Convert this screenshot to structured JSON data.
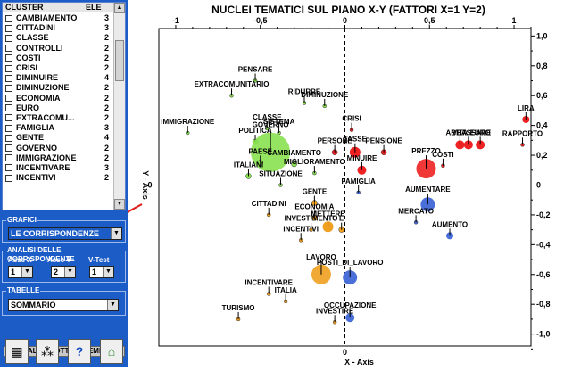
{
  "cluster_table": {
    "header_cluster": "CLUSTER",
    "header_ele": "ELE",
    "rows": [
      {
        "name": "CAMBIAMENTO",
        "ele": "3"
      },
      {
        "name": "CITTADINI",
        "ele": "3"
      },
      {
        "name": "CLASSE",
        "ele": "2"
      },
      {
        "name": "CONTROLLI",
        "ele": "2"
      },
      {
        "name": "COSTI",
        "ele": "2"
      },
      {
        "name": "CRISI",
        "ele": "2"
      },
      {
        "name": "DIMINUIRE",
        "ele": "4"
      },
      {
        "name": "DIMINUZIONE",
        "ele": "2"
      },
      {
        "name": "ECONOMIA",
        "ele": "2"
      },
      {
        "name": "EURO",
        "ele": "2"
      },
      {
        "name": "EXTRACOMU...",
        "ele": "2"
      },
      {
        "name": "FAMIGLIA",
        "ele": "3"
      },
      {
        "name": "GENTE",
        "ele": "4"
      },
      {
        "name": "GOVERNO",
        "ele": "2"
      },
      {
        "name": "IMMIGRAZIONE",
        "ele": "2"
      },
      {
        "name": "INCENTIVARE",
        "ele": "3"
      },
      {
        "name": "INCENTIVI",
        "ele": "2"
      }
    ]
  },
  "grafici": {
    "title": "GRAFICI",
    "selected": "LE CORRISPONDENZE"
  },
  "analisi": {
    "title": "ANALISI DELLE CORRISPONDENZE",
    "asse_x_label": "Asse X",
    "asse_y_label": "Asse Y",
    "vtest_label": "V-Test",
    "asse_x": "1",
    "asse_y": "2",
    "vtest": "1"
  },
  "tabelle": {
    "title": "TABELLE",
    "selected": "SOMMARIO"
  },
  "altri_button": "ALTRI SOTTOINSIEMI",
  "icons": [
    "calculator-icon",
    "network-icon",
    "help-icon",
    "home-exit-icon"
  ],
  "chart_data": {
    "type": "scatter",
    "title": "NUCLEI TEMATICI SUL PIANO X-Y  (FATTORI X=1 Y=2)",
    "xlabel": "X - Axis",
    "ylabel": "Y - Axis",
    "xlim": [
      -1.1,
      1.1
    ],
    "ylim": [
      -1.08,
      1.05
    ],
    "x_ticks": [
      -1,
      -0.5,
      0,
      0.5,
      1
    ],
    "x_tick_labels": [
      "-1",
      "-0,5",
      "0",
      "0,5",
      "1"
    ],
    "y_ticks": [
      1.0,
      0.8,
      0.6,
      0.4,
      0.2,
      0,
      -0.2,
      -0.4,
      -0.6,
      -0.8,
      -1.0
    ],
    "y_tick_labels": [
      "1,0",
      "0,8",
      "0,6",
      "0,4",
      "0,2",
      "0",
      "-0,2",
      "-0,4",
      "-0,6",
      "-0,8",
      "-1,0"
    ],
    "left_zero_label": "0",
    "colors": {
      "green": "#88e050",
      "red": "#ee2222",
      "blue": "#4a6fd8",
      "orange": "#f0a020"
    },
    "points": [
      {
        "label": "PENSARE",
        "x": -0.53,
        "y": 0.7,
        "color": "green",
        "r": 2
      },
      {
        "label": "EXTRACOMUNITARIO",
        "x": -0.67,
        "y": 0.6,
        "color": "green",
        "r": 2
      },
      {
        "label": "RIDURRE",
        "x": -0.24,
        "y": 0.55,
        "color": "green",
        "r": 2
      },
      {
        "label": "DIMINUZIONE",
        "x": -0.12,
        "y": 0.53,
        "color": "green",
        "r": 2
      },
      {
        "label": "IMMIGRAZIONE",
        "x": -0.93,
        "y": 0.35,
        "color": "green",
        "r": 2
      },
      {
        "label": "CLASSE",
        "x": -0.46,
        "y": 0.38,
        "color": "green",
        "r": 2
      },
      {
        "label": "SISTEMA",
        "x": -0.39,
        "y": 0.35,
        "color": "green",
        "r": 2
      },
      {
        "label": "POLITICA",
        "x": -0.53,
        "y": 0.29,
        "color": "green",
        "r": 3
      },
      {
        "label": "GOVERNO",
        "x": -0.44,
        "y": 0.22,
        "color": "green",
        "r": 22
      },
      {
        "label": "PAESE",
        "x": -0.5,
        "y": 0.15,
        "color": "green",
        "r": 3
      },
      {
        "label": "CAMBIAMENTO",
        "x": -0.3,
        "y": 0.14,
        "color": "green",
        "r": 3
      },
      {
        "label": "MIGLIORAMENTO",
        "x": -0.18,
        "y": 0.08,
        "color": "green",
        "r": 2
      },
      {
        "label": "ITALIANI",
        "x": -0.57,
        "y": 0.06,
        "color": "green",
        "r": 3
      },
      {
        "label": "SITUAZIONE",
        "x": -0.38,
        "y": 0.0,
        "color": "green",
        "r": 2
      },
      {
        "label": "CRISI",
        "x": 0.04,
        "y": 0.37,
        "color": "red",
        "r": 2
      },
      {
        "label": "PERSONE",
        "x": -0.06,
        "y": 0.22,
        "color": "red",
        "r": 3
      },
      {
        "label": "TASSE",
        "x": 0.06,
        "y": 0.22,
        "color": "red",
        "r": 6
      },
      {
        "label": "PENSIONE",
        "x": 0.23,
        "y": 0.22,
        "color": "red",
        "r": 3
      },
      {
        "label": "MINUIRE",
        "x": 0.1,
        "y": 0.1,
        "color": "red",
        "r": 5
      },
      {
        "label": "PREZZO",
        "x": 0.48,
        "y": 0.11,
        "color": "red",
        "r": 11
      },
      {
        "label": "COSTI",
        "x": 0.58,
        "y": 0.13,
        "color": "red",
        "r": 2
      },
      {
        "label": "VITA",
        "x": 0.68,
        "y": 0.27,
        "color": "red",
        "r": 5
      },
      {
        "label": "ABBASSARE",
        "x": 0.73,
        "y": 0.27,
        "color": "red",
        "r": 5
      },
      {
        "label": "EURO",
        "x": 0.8,
        "y": 0.27,
        "color": "red",
        "r": 5
      },
      {
        "label": "LIRA",
        "x": 1.07,
        "y": 0.44,
        "color": "red",
        "r": 4
      },
      {
        "label": "RAPPORTO",
        "x": 1.05,
        "y": 0.27,
        "color": "red",
        "r": 2
      },
      {
        "label": "FAMIGLIA",
        "x": 0.08,
        "y": -0.05,
        "color": "blue",
        "r": 2
      },
      {
        "label": "AUMENTARE",
        "x": 0.49,
        "y": -0.13,
        "color": "blue",
        "r": 8
      },
      {
        "label": "MERCATO",
        "x": 0.42,
        "y": -0.25,
        "color": "blue",
        "r": 2
      },
      {
        "label": "AUMENTO",
        "x": 0.62,
        "y": -0.34,
        "color": "blue",
        "r": 4
      },
      {
        "label": "POSTI_DI_LAVORO",
        "x": 0.03,
        "y": -0.62,
        "color": "blue",
        "r": 8
      },
      {
        "label": "OCCUPAZIONE",
        "x": 0.03,
        "y": -0.89,
        "color": "blue",
        "r": 5
      },
      {
        "label": "GENTE",
        "x": -0.18,
        "y": -0.12,
        "color": "orange",
        "r": 3
      },
      {
        "label": "ECONOMIA",
        "x": -0.18,
        "y": -0.22,
        "color": "orange",
        "r": 3
      },
      {
        "label": "METTERE",
        "x": -0.1,
        "y": -0.28,
        "color": "orange",
        "r": 6
      },
      {
        "label": "E",
        "x": -0.02,
        "y": -0.3,
        "color": "orange",
        "r": 3
      },
      {
        "label": "CITTADINI",
        "x": -0.45,
        "y": -0.2,
        "color": "orange",
        "r": 2
      },
      {
        "label": "INVESTIMENTO",
        "x": -0.2,
        "y": -0.3,
        "color": "orange",
        "r": 2
      },
      {
        "label": "INCENTIVI",
        "x": -0.26,
        "y": -0.37,
        "color": "orange",
        "r": 2
      },
      {
        "label": "LAVORO",
        "x": -0.14,
        "y": -0.6,
        "color": "orange",
        "r": 11
      },
      {
        "label": "INCENTIVARE",
        "x": -0.45,
        "y": -0.73,
        "color": "orange",
        "r": 2
      },
      {
        "label": "ITALIA",
        "x": -0.35,
        "y": -0.78,
        "color": "orange",
        "r": 2
      },
      {
        "label": "TURISMO",
        "x": -0.63,
        "y": -0.9,
        "color": "orange",
        "r": 2
      },
      {
        "label": "INVESTIRE",
        "x": -0.06,
        "y": -0.92,
        "color": "orange",
        "r": 2
      }
    ]
  }
}
